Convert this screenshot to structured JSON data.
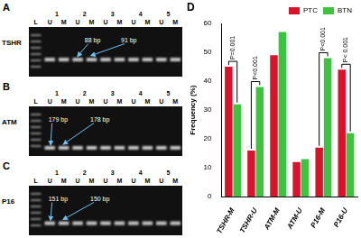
{
  "gels": [
    {
      "panel": "A",
      "gene": "TSHR",
      "samples": [
        "1",
        "2",
        "3",
        "4",
        "5"
      ],
      "lanes": [
        "L",
        "U",
        "M",
        "U",
        "M",
        "U",
        "M",
        "U",
        "M",
        "U",
        "M"
      ],
      "band_labels": [
        "88 bp",
        "91 bp"
      ]
    },
    {
      "panel": "B",
      "gene": "ATM",
      "samples": [
        "1",
        "2",
        "3",
        "4",
        "5"
      ],
      "lanes": [
        "L",
        "U",
        "M",
        "U",
        "M",
        "U",
        "M",
        "U",
        "M",
        "U",
        "M"
      ],
      "band_labels": [
        "179 bp",
        "178 bp"
      ]
    },
    {
      "panel": "C",
      "gene": "P16",
      "samples": [
        "1",
        "2",
        "3",
        "4",
        "5"
      ],
      "lanes": [
        "L",
        "U",
        "M",
        "U",
        "M",
        "U",
        "M",
        "U",
        "M",
        "U",
        "M"
      ],
      "band_labels": [
        "151 bp",
        "150 bp"
      ]
    }
  ],
  "chart_data": {
    "type": "bar",
    "title": "D",
    "categories": [
      "TSHR-M",
      "TSHR-U",
      "ATM-M",
      "ATM-U",
      "P16-M",
      "P16-U"
    ],
    "series": [
      {
        "name": "PTC",
        "color": "#d7142c",
        "values": [
          45,
          16,
          49,
          12,
          17,
          44
        ]
      },
      {
        "name": "BTN",
        "color": "#3fc23f",
        "values": [
          32,
          38,
          57,
          13,
          48,
          22
        ]
      }
    ],
    "y_label": "Frequency (%)",
    "ylim": [
      0,
      60
    ],
    "yticks": [
      0,
      10,
      20,
      30,
      40,
      50,
      60
    ],
    "grid": false,
    "legend": "top-right",
    "annotations": [
      {
        "category": "TSHR-M",
        "text": "P=0.001"
      },
      {
        "category": "TSHR-U",
        "text": "P<0.001"
      },
      {
        "category": "P16-M",
        "text": "P<0.001"
      },
      {
        "category": "P16-U",
        "text": "P< 0.001"
      }
    ]
  }
}
